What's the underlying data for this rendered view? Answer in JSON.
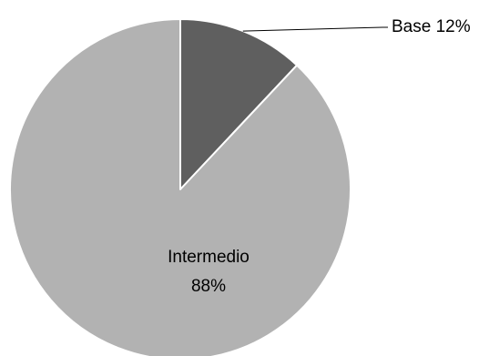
{
  "chart_data": {
    "type": "pie",
    "title": "",
    "slices": [
      {
        "label": "Base",
        "value": 12,
        "value_label": "12%",
        "color": "#5f5f5f"
      },
      {
        "label": "Intermedio",
        "value": 88,
        "value_label": "88%",
        "color": "#b2b2b2"
      }
    ],
    "legend": "none",
    "data_labels": true,
    "start_angle": "12 o'clock",
    "direction": "clockwise"
  }
}
